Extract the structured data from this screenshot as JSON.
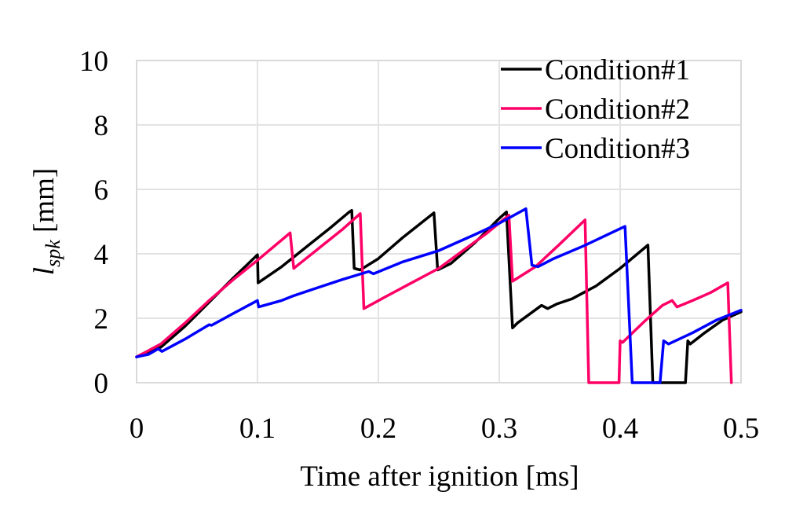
{
  "chart_data": {
    "type": "line",
    "title": "",
    "xlabel": "Time after ignition [ms]",
    "ylabel": {
      "main": "l",
      "subscript": "spk",
      "unit": " [mm]"
    },
    "xlim": [
      0,
      0.5
    ],
    "ylim": [
      0,
      10
    ],
    "xticks": [
      0,
      0.1,
      0.2,
      0.3,
      0.4,
      0.5
    ],
    "xtick_labels": [
      "0",
      "0.1",
      "0.2",
      "0.3",
      "0.4",
      "0.5"
    ],
    "yticks": [
      0,
      2,
      4,
      6,
      8,
      10
    ],
    "ytick_labels": [
      "0",
      "2",
      "4",
      "6",
      "8",
      "10"
    ],
    "grid": true,
    "legend_position": "top-right",
    "series": [
      {
        "name": "Condition#1",
        "color": "#000000",
        "points": [
          [
            0,
            0.8
          ],
          [
            0.01,
            0.95
          ],
          [
            0.02,
            1.1
          ],
          [
            0.04,
            1.75
          ],
          [
            0.06,
            2.5
          ],
          [
            0.08,
            3.25
          ],
          [
            0.1,
            3.97
          ],
          [
            0.1005,
            3.1
          ],
          [
            0.12,
            3.6
          ],
          [
            0.14,
            4.2
          ],
          [
            0.16,
            4.8
          ],
          [
            0.176,
            5.3
          ],
          [
            0.178,
            5.35
          ],
          [
            0.18,
            3.55
          ],
          [
            0.185,
            3.5
          ],
          [
            0.2,
            3.85
          ],
          [
            0.22,
            4.5
          ],
          [
            0.246,
            5.27
          ],
          [
            0.249,
            3.5
          ],
          [
            0.26,
            3.7
          ],
          [
            0.28,
            4.35
          ],
          [
            0.3,
            5.1
          ],
          [
            0.306,
            5.3
          ],
          [
            0.311,
            1.7
          ],
          [
            0.315,
            1.85
          ],
          [
            0.335,
            2.4
          ],
          [
            0.34,
            2.3
          ],
          [
            0.348,
            2.45
          ],
          [
            0.36,
            2.6
          ],
          [
            0.375,
            2.9
          ],
          [
            0.38,
            3.0
          ],
          [
            0.4,
            3.55
          ],
          [
            0.423,
            4.27
          ],
          [
            0.427,
            0
          ],
          [
            0.454,
            0
          ],
          [
            0.456,
            1.3
          ],
          [
            0.458,
            1.2
          ],
          [
            0.47,
            1.55
          ],
          [
            0.485,
            1.95
          ],
          [
            0.5,
            2.2
          ]
        ]
      },
      {
        "name": "Condition#2",
        "color": "#FF0066",
        "points": [
          [
            0,
            0.8
          ],
          [
            0.01,
            1.0
          ],
          [
            0.02,
            1.2
          ],
          [
            0.04,
            1.85
          ],
          [
            0.06,
            2.55
          ],
          [
            0.08,
            3.2
          ],
          [
            0.1,
            3.8
          ],
          [
            0.127,
            4.65
          ],
          [
            0.13,
            3.55
          ],
          [
            0.15,
            4.15
          ],
          [
            0.17,
            4.75
          ],
          [
            0.185,
            5.25
          ],
          [
            0.188,
            2.3
          ],
          [
            0.205,
            2.65
          ],
          [
            0.225,
            3.05
          ],
          [
            0.25,
            3.55
          ],
          [
            0.27,
            4.1
          ],
          [
            0.29,
            4.65
          ],
          [
            0.308,
            5.2
          ],
          [
            0.311,
            3.15
          ],
          [
            0.33,
            3.6
          ],
          [
            0.35,
            4.3
          ],
          [
            0.371,
            5.05
          ],
          [
            0.374,
            0
          ],
          [
            0.399,
            0
          ],
          [
            0.4,
            1.3
          ],
          [
            0.402,
            1.25
          ],
          [
            0.42,
            1.9
          ],
          [
            0.435,
            2.4
          ],
          [
            0.443,
            2.55
          ],
          [
            0.447,
            2.35
          ],
          [
            0.46,
            2.55
          ],
          [
            0.475,
            2.8
          ],
          [
            0.489,
            3.1
          ],
          [
            0.492,
            0
          ]
        ]
      },
      {
        "name": "Condition#3",
        "color": "#0000FF",
        "points": [
          [
            0,
            0.8
          ],
          [
            0.01,
            0.88
          ],
          [
            0.018,
            1.05
          ],
          [
            0.021,
            0.97
          ],
          [
            0.04,
            1.35
          ],
          [
            0.06,
            1.8
          ],
          [
            0.062,
            1.78
          ],
          [
            0.08,
            2.15
          ],
          [
            0.1,
            2.55
          ],
          [
            0.101,
            2.35
          ],
          [
            0.12,
            2.55
          ],
          [
            0.13,
            2.7
          ],
          [
            0.15,
            2.95
          ],
          [
            0.17,
            3.2
          ],
          [
            0.192,
            3.45
          ],
          [
            0.196,
            3.38
          ],
          [
            0.22,
            3.75
          ],
          [
            0.25,
            4.1
          ],
          [
            0.28,
            4.6
          ],
          [
            0.3,
            4.95
          ],
          [
            0.322,
            5.4
          ],
          [
            0.327,
            3.65
          ],
          [
            0.332,
            3.6
          ],
          [
            0.345,
            3.85
          ],
          [
            0.37,
            4.25
          ],
          [
            0.404,
            4.85
          ],
          [
            0.41,
            0
          ],
          [
            0.433,
            0
          ],
          [
            0.436,
            1.3
          ],
          [
            0.44,
            1.2
          ],
          [
            0.46,
            1.55
          ],
          [
            0.48,
            1.95
          ],
          [
            0.5,
            2.25
          ]
        ]
      }
    ]
  }
}
